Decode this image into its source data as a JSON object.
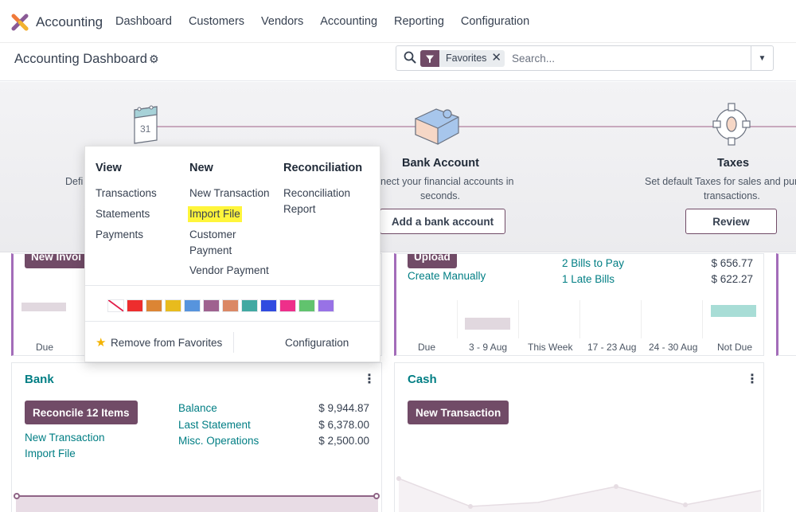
{
  "app": {
    "title": "Accounting"
  },
  "nav": [
    "Dashboard",
    "Customers",
    "Vendors",
    "Accounting",
    "Reporting",
    "Configuration"
  ],
  "control": {
    "page_title": "Accounting Dashboard",
    "facet": "Favorites",
    "search_placeholder": "Search..."
  },
  "banner": {
    "step1_fragment": "Defi",
    "bank": {
      "title": "Bank Account",
      "desc1": "nect your financial accounts in",
      "desc2": "seconds.",
      "button": "Add a bank account"
    },
    "taxes": {
      "title": "Taxes",
      "desc1": "Set default Taxes for sales and purc",
      "desc2": "transactions.",
      "button": "Review"
    }
  },
  "customer_card": {
    "button_fragment": "New Invoi",
    "axis_first": "Due"
  },
  "vendor_card": {
    "button_fragment": "Upload",
    "create_manually": "Create Manually",
    "stats": [
      {
        "label": "2 Bills to Pay",
        "value": "$ 656.77"
      },
      {
        "label": "1 Late Bills",
        "value": "$ 622.27"
      }
    ],
    "axis": [
      "Due",
      "3 - 9 Aug",
      "This Week",
      "17 - 23 Aug",
      "24 - 30 Aug",
      "Not Due"
    ]
  },
  "bank_card": {
    "title": "Bank",
    "button": "Reconcile 12 Items",
    "links": [
      "New Transaction",
      "Import File"
    ],
    "stats": [
      {
        "label": "Balance",
        "value": "$ 9,944.87"
      },
      {
        "label": "Last Statement",
        "value": "$ 6,378.00"
      },
      {
        "label": "Misc. Operations",
        "value": "$ 2,500.00"
      }
    ]
  },
  "cash_card": {
    "title": "Cash",
    "button": "New Transaction"
  },
  "dropdown": {
    "view": {
      "title": "View",
      "items": [
        "Transactions",
        "Statements",
        "Payments"
      ]
    },
    "new": {
      "title": "New",
      "items": [
        "New Transaction",
        "Import File",
        "Customer",
        "Payment",
        "Vendor Payment"
      ]
    },
    "reconciliation": {
      "title": "Reconciliation",
      "items": [
        "Reconciliation",
        "Report"
      ]
    },
    "colors": [
      "#ffffff",
      "#ee2d2d",
      "#dc8534",
      "#e8bb1d",
      "#5794dd",
      "#9f628f",
      "#db8865",
      "#41a9a2",
      "#304be0",
      "#ee2f8a",
      "#61c36e",
      "#9872e6"
    ],
    "remove_favorites": "Remove from Favorites",
    "configuration": "Configuration"
  }
}
